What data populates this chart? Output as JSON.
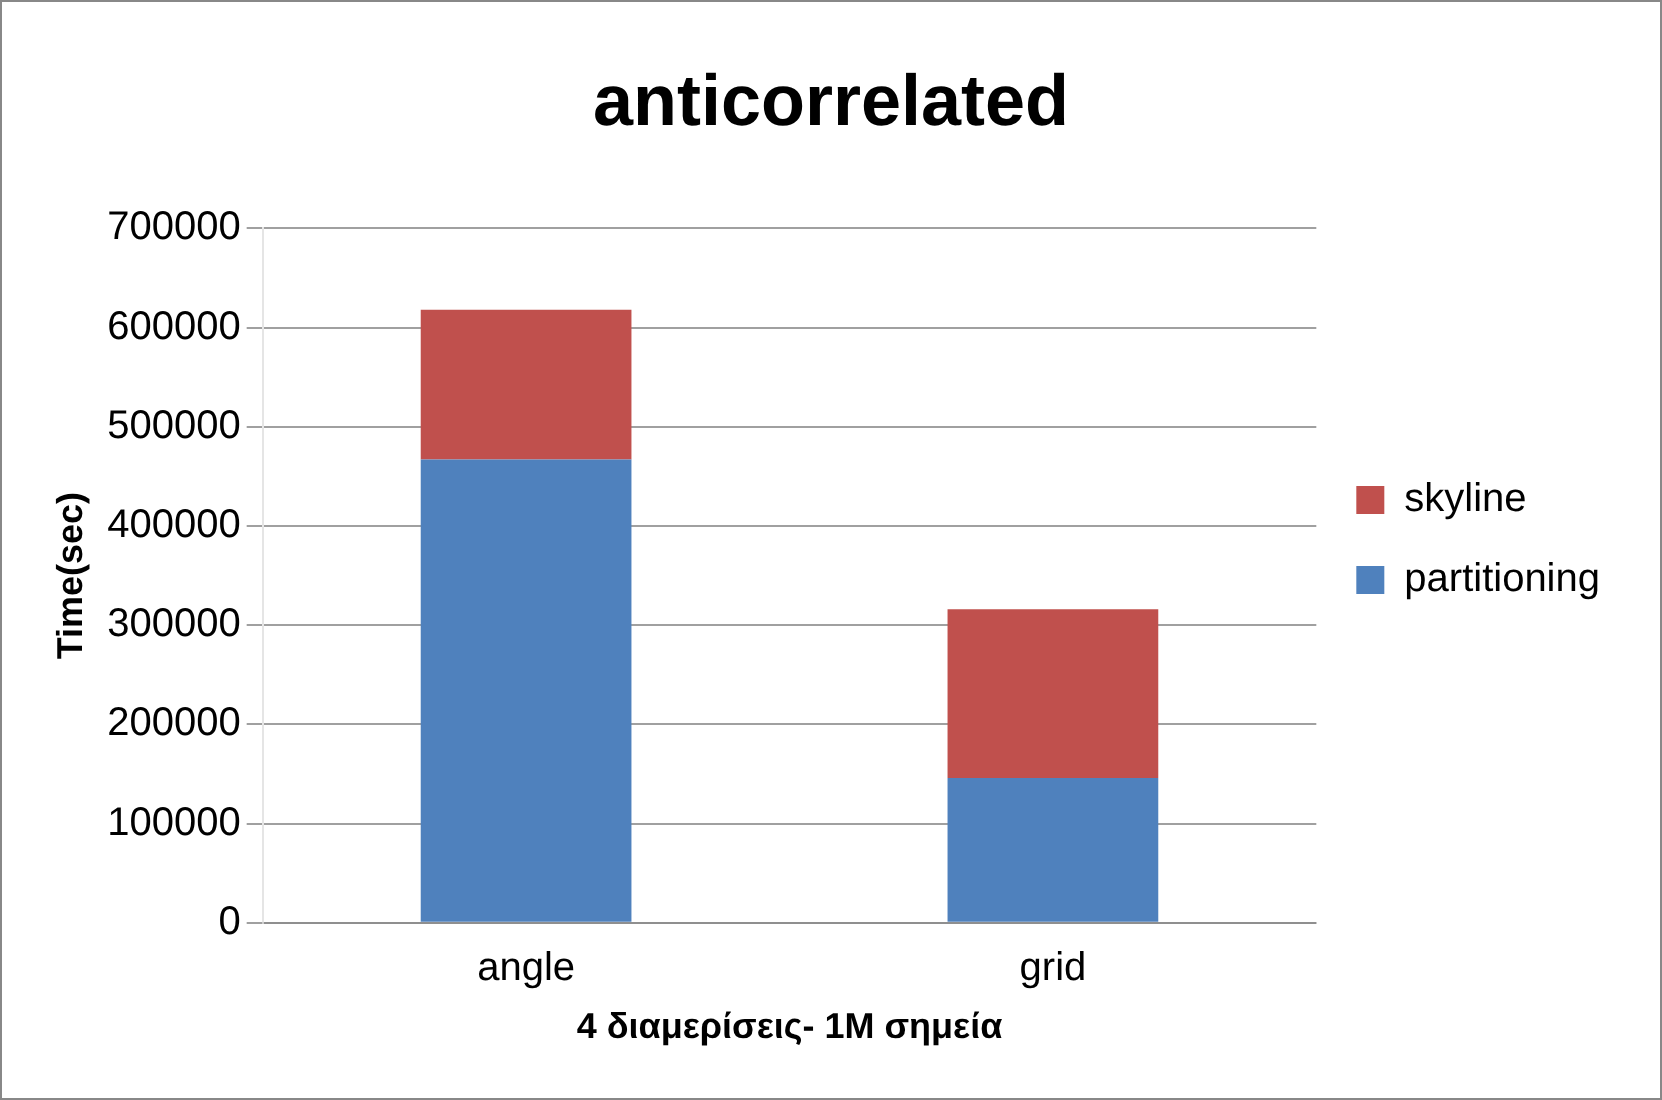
{
  "chart_data": {
    "type": "bar",
    "title": "anticorrelated",
    "xlabel": "4 διαμερίσεις- 1M σημεία",
    "ylabel": "Time(sec)",
    "categories": [
      "angle",
      "grid"
    ],
    "stacked": true,
    "series": [
      {
        "name": "partitioning",
        "color": "#4f81bd",
        "values": [
          467000,
          146000
        ]
      },
      {
        "name": "skyline",
        "color": "#c0504d",
        "values": [
          151000,
          170000
        ]
      }
    ],
    "ylim": [
      0,
      700000
    ],
    "yticks": [
      0,
      100000,
      200000,
      300000,
      400000,
      500000,
      600000,
      700000
    ],
    "grid": "y",
    "legend": "right"
  }
}
